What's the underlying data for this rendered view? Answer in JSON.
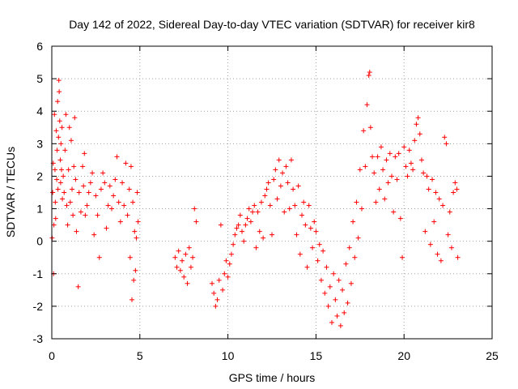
{
  "colors": {
    "background": "#ffffff",
    "axis": "#000000",
    "grid": "#a0a0a0",
    "series": "#ff0000"
  },
  "chart_data": {
    "type": "scatter",
    "title": "Day 142 of 2022, Sidereal Day-to-day VTEC variation (SDTVAR) for receiver kir8",
    "xlabel": "GPS time / hours",
    "ylabel": "SDTVAR / TECUs",
    "xlim": [
      0,
      25
    ],
    "ylim": [
      -3,
      6
    ],
    "xticks": [
      0,
      5,
      10,
      15,
      20,
      25
    ],
    "yticks": [
      -3,
      -2,
      -1,
      0,
      1,
      2,
      3,
      4,
      5,
      6
    ],
    "grid": true,
    "marker": "+",
    "legend": "none",
    "series": [
      {
        "name": "SDTVAR",
        "points": [
          [
            0.02,
            0.1
          ],
          [
            0.05,
            1.5
          ],
          [
            0.08,
            2.4
          ],
          [
            0.1,
            -1.0
          ],
          [
            0.12,
            0.5
          ],
          [
            0.15,
            3.9
          ],
          [
            0.18,
            2.2
          ],
          [
            0.2,
            1.2
          ],
          [
            0.22,
            0.7
          ],
          [
            0.25,
            3.4
          ],
          [
            0.28,
            1.9
          ],
          [
            0.3,
            2.8
          ],
          [
            0.33,
            4.3
          ],
          [
            0.35,
            1.6
          ],
          [
            0.38,
            3.2
          ],
          [
            0.4,
            4.95
          ],
          [
            0.42,
            4.6
          ],
          [
            0.45,
            3.7
          ],
          [
            0.48,
            2.5
          ],
          [
            0.5,
            1.8
          ],
          [
            0.52,
            3.0
          ],
          [
            0.55,
            2.2
          ],
          [
            0.58,
            3.5
          ],
          [
            0.6,
            1.3
          ],
          [
            0.65,
            2.0
          ],
          [
            0.7,
            1.5
          ],
          [
            0.75,
            2.8
          ],
          [
            0.8,
            3.9
          ],
          [
            0.85,
            1.1
          ],
          [
            0.9,
            0.5
          ],
          [
            0.95,
            2.2
          ],
          [
            1.0,
            3.5
          ],
          [
            1.05,
            1.2
          ],
          [
            1.1,
            3.1
          ],
          [
            1.15,
            1.6
          ],
          [
            1.2,
            0.8
          ],
          [
            1.25,
            2.3
          ],
          [
            1.3,
            3.8
          ],
          [
            1.35,
            1.9
          ],
          [
            1.4,
            0.3
          ],
          [
            1.5,
            -1.4
          ],
          [
            1.55,
            1.5
          ],
          [
            1.65,
            0.9
          ],
          [
            1.75,
            2.3
          ],
          [
            1.8,
            1.7
          ],
          [
            1.85,
            2.7
          ],
          [
            1.9,
            0.8
          ],
          [
            2.0,
            1.1
          ],
          [
            2.1,
            1.5
          ],
          [
            2.2,
            1.8
          ],
          [
            2.3,
            2.1
          ],
          [
            2.4,
            0.2
          ],
          [
            2.5,
            1.4
          ],
          [
            2.6,
            0.8
          ],
          [
            2.7,
            -0.5
          ],
          [
            2.8,
            1.6
          ],
          [
            2.9,
            2.1
          ],
          [
            3.0,
            1.8
          ],
          [
            3.1,
            0.4
          ],
          [
            3.2,
            1.1
          ],
          [
            3.3,
            1.7
          ],
          [
            3.4,
            1.0
          ],
          [
            3.5,
            1.4
          ],
          [
            3.6,
            1.9
          ],
          [
            3.7,
            2.6
          ],
          [
            3.8,
            1.2
          ],
          [
            3.9,
            0.6
          ],
          [
            4.0,
            1.8
          ],
          [
            4.1,
            1.1
          ],
          [
            4.2,
            2.4
          ],
          [
            4.3,
            0.8
          ],
          [
            4.4,
            1.6
          ],
          [
            4.45,
            -0.5
          ],
          [
            4.5,
            2.3
          ],
          [
            4.55,
            -1.8
          ],
          [
            4.6,
            1.2
          ],
          [
            4.65,
            -1.2
          ],
          [
            4.7,
            0.3
          ],
          [
            4.75,
            -0.9
          ],
          [
            4.8,
            0.1
          ],
          [
            4.85,
            1.5
          ],
          [
            4.9,
            0.6
          ],
          [
            7.0,
            -0.5
          ],
          [
            7.1,
            -0.8
          ],
          [
            7.2,
            -0.3
          ],
          [
            7.3,
            -0.9
          ],
          [
            7.4,
            -0.6
          ],
          [
            7.5,
            -1.1
          ],
          [
            7.6,
            -0.4
          ],
          [
            7.7,
            -1.3
          ],
          [
            7.8,
            -0.2
          ],
          [
            7.9,
            -0.8
          ],
          [
            8.0,
            -0.5
          ],
          [
            8.1,
            1.0
          ],
          [
            8.2,
            0.6
          ],
          [
            9.1,
            -1.3
          ],
          [
            9.2,
            -1.6
          ],
          [
            9.3,
            -2.0
          ],
          [
            9.4,
            -1.8
          ],
          [
            9.5,
            -1.2
          ],
          [
            9.6,
            0.5
          ],
          [
            9.7,
            -1.5
          ],
          [
            9.8,
            -1.0
          ],
          [
            9.9,
            -0.6
          ],
          [
            10.0,
            -1.1
          ],
          [
            10.1,
            -0.7
          ],
          [
            10.2,
            -0.4
          ],
          [
            10.3,
            -0.1
          ],
          [
            10.4,
            0.2
          ],
          [
            10.5,
            0.4
          ],
          [
            10.6,
            0.5
          ],
          [
            10.7,
            0.8
          ],
          [
            10.8,
            0.3
          ],
          [
            10.9,
            0.0
          ],
          [
            11.0,
            0.5
          ],
          [
            11.1,
            0.7
          ],
          [
            11.2,
            1.0
          ],
          [
            11.3,
            0.6
          ],
          [
            11.4,
            0.9
          ],
          [
            11.5,
            1.1
          ],
          [
            11.6,
            -0.2
          ],
          [
            11.7,
            0.9
          ],
          [
            11.8,
            0.3
          ],
          [
            11.9,
            1.2
          ],
          [
            12.0,
            0.1
          ],
          [
            12.1,
            1.4
          ],
          [
            12.2,
            1.6
          ],
          [
            12.3,
            1.8
          ],
          [
            12.4,
            1.1
          ],
          [
            12.5,
            0.2
          ],
          [
            12.6,
            1.9
          ],
          [
            12.7,
            2.2
          ],
          [
            12.8,
            1.3
          ],
          [
            12.9,
            2.5
          ],
          [
            13.0,
            1.7
          ],
          [
            13.1,
            2.1
          ],
          [
            13.2,
            0.9
          ],
          [
            13.3,
            2.3
          ],
          [
            13.4,
            1.8
          ],
          [
            13.5,
            1.0
          ],
          [
            13.6,
            2.5
          ],
          [
            13.7,
            1.6
          ],
          [
            13.8,
            1.1
          ],
          [
            13.9,
            0.2
          ],
          [
            14.0,
            1.7
          ],
          [
            14.1,
            -0.4
          ],
          [
            14.2,
            0.8
          ],
          [
            14.3,
            1.2
          ],
          [
            14.4,
            0.5
          ],
          [
            14.5,
            -0.8
          ],
          [
            14.6,
            1.1
          ],
          [
            14.7,
            0.4
          ],
          [
            14.8,
            -0.2
          ],
          [
            14.9,
            0.6
          ],
          [
            15.0,
            0.3
          ],
          [
            15.1,
            -0.6
          ],
          [
            15.2,
            -0.1
          ],
          [
            15.3,
            -1.2
          ],
          [
            15.4,
            -0.3
          ],
          [
            15.5,
            -1.6
          ],
          [
            15.6,
            -0.8
          ],
          [
            15.7,
            -2.0
          ],
          [
            15.8,
            -1.4
          ],
          [
            15.9,
            -2.5
          ],
          [
            16.0,
            -1.0
          ],
          [
            16.1,
            -1.8
          ],
          [
            16.2,
            -2.3
          ],
          [
            16.3,
            -1.2
          ],
          [
            16.4,
            -2.6
          ],
          [
            16.5,
            -1.5
          ],
          [
            16.6,
            -2.2
          ],
          [
            16.7,
            -0.7
          ],
          [
            16.8,
            -1.9
          ],
          [
            16.9,
            -0.2
          ],
          [
            17.0,
            -1.3
          ],
          [
            17.1,
            0.6
          ],
          [
            17.2,
            -0.5
          ],
          [
            17.3,
            1.2
          ],
          [
            17.4,
            0.1
          ],
          [
            17.5,
            2.2
          ],
          [
            17.6,
            1.0
          ],
          [
            17.7,
            3.4
          ],
          [
            17.8,
            2.3
          ],
          [
            17.9,
            4.2
          ],
          [
            18.0,
            5.1
          ],
          [
            18.05,
            5.2
          ],
          [
            18.1,
            3.5
          ],
          [
            18.2,
            2.6
          ],
          [
            18.3,
            2.1
          ],
          [
            18.4,
            1.2
          ],
          [
            18.5,
            2.6
          ],
          [
            18.6,
            1.6
          ],
          [
            18.7,
            2.9
          ],
          [
            18.8,
            2.2
          ],
          [
            18.9,
            1.3
          ],
          [
            19.0,
            2.5
          ],
          [
            19.1,
            1.8
          ],
          [
            19.2,
            2.7
          ],
          [
            19.3,
            2.0
          ],
          [
            19.4,
            0.9
          ],
          [
            19.5,
            2.6
          ],
          [
            19.6,
            1.9
          ],
          [
            19.7,
            2.7
          ],
          [
            19.8,
            0.7
          ],
          [
            19.9,
            -0.5
          ],
          [
            20.0,
            2.9
          ],
          [
            20.1,
            2.3
          ],
          [
            20.2,
            2.0
          ],
          [
            20.3,
            2.8
          ],
          [
            20.4,
            2.4
          ],
          [
            20.5,
            2.2
          ],
          [
            20.6,
            3.1
          ],
          [
            20.7,
            3.6
          ],
          [
            20.8,
            3.8
          ],
          [
            20.9,
            3.3
          ],
          [
            21.0,
            2.5
          ],
          [
            21.1,
            2.1
          ],
          [
            21.2,
            0.3
          ],
          [
            21.3,
            2.0
          ],
          [
            21.4,
            1.6
          ],
          [
            21.5,
            -0.1
          ],
          [
            21.6,
            1.9
          ],
          [
            21.7,
            0.6
          ],
          [
            21.8,
            1.5
          ],
          [
            21.9,
            -0.4
          ],
          [
            22.0,
            1.3
          ],
          [
            22.1,
            -0.6
          ],
          [
            22.2,
            1.1
          ],
          [
            22.3,
            3.2
          ],
          [
            22.4,
            3.0
          ],
          [
            22.5,
            0.2
          ],
          [
            22.6,
            0.9
          ],
          [
            22.7,
            -0.2
          ],
          [
            22.8,
            1.5
          ],
          [
            22.9,
            1.8
          ],
          [
            23.0,
            1.6
          ],
          [
            23.05,
            -0.5
          ]
        ]
      }
    ]
  }
}
